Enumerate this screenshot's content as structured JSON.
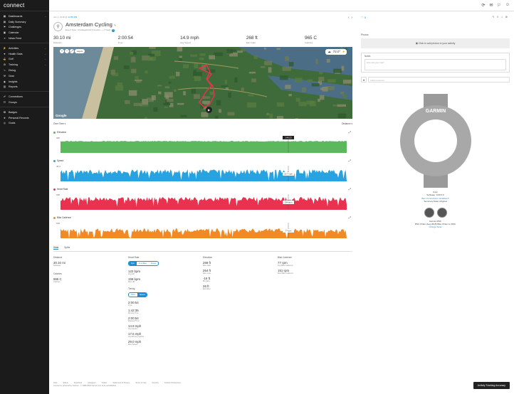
{
  "app": {
    "logo": "connect"
  },
  "sidebar": {
    "items": [
      {
        "label": "Dashboards",
        "icon": "dashboard-icon",
        "chev": true
      },
      {
        "label": "Daily Summary",
        "icon": "daily-summary-icon",
        "chev": false
      },
      {
        "label": "Challenges",
        "icon": "challenges-icon",
        "chev": false
      },
      {
        "label": "Calendar",
        "icon": "calendar-icon",
        "chev": false
      },
      {
        "label": "News Feed",
        "icon": "news-feed-icon",
        "chev": false
      }
    ],
    "items2": [
      {
        "label": "Activities",
        "icon": "activities-icon",
        "chev": true
      },
      {
        "label": "Health Stats",
        "icon": "health-stats-icon",
        "chev": true
      },
      {
        "label": "Golf",
        "icon": "golf-icon",
        "chev": true
      },
      {
        "label": "Training",
        "icon": "training-icon",
        "chev": true
      },
      {
        "label": "Diving",
        "icon": "diving-icon",
        "chev": false
      },
      {
        "label": "Gear",
        "icon": "gear-icon",
        "chev": false
      },
      {
        "label": "Insights",
        "icon": "insights-icon",
        "chev": false
      },
      {
        "label": "Reports",
        "icon": "reports-icon",
        "chev": false
      }
    ],
    "items3": [
      {
        "label": "Connections",
        "icon": "connections-icon",
        "chev": false
      },
      {
        "label": "Groups",
        "icon": "groups-icon",
        "chev": false
      }
    ],
    "items4": [
      {
        "label": "Badges",
        "icon": "badges-icon",
        "chev": false
      },
      {
        "label": "Personal Records",
        "icon": "personal-records-icon",
        "chev": false
      },
      {
        "label": "Goals",
        "icon": "goals-icon",
        "chev": false
      }
    ]
  },
  "activity": {
    "breadcrumb_pre": "Jun 1, 2018 @",
    "breadcrumb_link": "12:55 PM",
    "title": "Amsterdam Cycling",
    "subtitle": "Event Type: Uncategorized ▾   Course: — ▾   Gear:",
    "gear_badge": "1"
  },
  "stats": [
    {
      "value": "30.10 mi",
      "label": "Distance"
    },
    {
      "value": "2:00:54",
      "label": "Time"
    },
    {
      "value": "14.9 mph",
      "label": "Avg Speed"
    },
    {
      "value": "268 ft",
      "label": "Elev Gain"
    },
    {
      "value": "965 C",
      "label": "Calories"
    }
  ],
  "map": {
    "weather": "72.0°",
    "google": "Google",
    "pill": "Layers"
  },
  "charts_header": {
    "left": "Over Time ▾",
    "right": "Distance ▾"
  },
  "graphs": [
    {
      "title": "Elevation",
      "color": "#5cb85c",
      "top_label": "32ft",
      "badge": "1:40:23"
    },
    {
      "title": "Speed",
      "color": "#29a3e0",
      "top_label": "45.0",
      "badge": "15.7 mph"
    },
    {
      "title": "Heart Rate",
      "color": "#e8324f",
      "top_label": "180",
      "badge": "154 bpm"
    },
    {
      "title": "Bike Cadence",
      "color": "#f08a24",
      "top_label": "160",
      "badge": "77 rpm"
    }
  ],
  "tabs": {
    "stats": "Stats",
    "splits": "Splits"
  },
  "cols": {
    "distance": {
      "h": "Distance",
      "items": [
        {
          "v": "30.10 mi",
          "l": "Distance"
        }
      ]
    },
    "calories": {
      "h": "Calories",
      "items": [
        {
          "v": "965 C",
          "l": "Calories"
        }
      ]
    },
    "heart": {
      "h": "Heart Rate",
      "toggle": [
        "bpm",
        "% of Max",
        "Zones"
      ],
      "items": [
        {
          "v": "122 bpm",
          "l": "Avg HR"
        },
        {
          "v": "159 bpm",
          "l": "Max HR"
        }
      ]
    },
    "timing": {
      "h": "Timing",
      "toggle": [
        "Pace",
        "Speed"
      ],
      "items": [
        {
          "v": "2:00:54",
          "l": "Time"
        },
        {
          "v": "1:42:35",
          "l": "Moving Time"
        },
        {
          "v": "2:00:54",
          "l": "Elapsed Time"
        },
        {
          "v": "14.9 mph",
          "l": "Avg Speed"
        },
        {
          "v": "17.6 mph",
          "l": "Avg Moving Speed"
        },
        {
          "v": "29.0 mph",
          "l": "Max Speed"
        }
      ]
    },
    "elev": {
      "h": "Elevation",
      "items": [
        {
          "v": "268 ft",
          "l": "Elev Gain"
        },
        {
          "v": "264 ft",
          "l": "Elev Loss"
        },
        {
          "v": "-16 ft",
          "l": "Min Elev"
        },
        {
          "v": "26 ft",
          "l": "Max Elev"
        }
      ]
    },
    "cadence": {
      "h": "Bike Cadence",
      "items": [
        {
          "v": "77 rpm",
          "l": "Avg Bike Cadence"
        },
        {
          "v": "151 rpm",
          "l": "Max Bike Cadence"
        }
      ]
    }
  },
  "footer": {
    "links": [
      "Help",
      "Status",
      "Facebook",
      "Instagram",
      "Twitter",
      "Statement of Privacy",
      "Terms of Use",
      "Security",
      "Cookie Preferences"
    ],
    "copyright": "Connect is powered by Garmin · © 1996-2018 Garmin Ltd. or its subsidiaries"
  },
  "accuracy_button": "Activity Tracking Accuracy",
  "right": {
    "likes": "0",
    "photos_label": "Photos",
    "photos_cta": "Click to add photos to your activity",
    "notes_label": "Notes",
    "notes_placeholder": "How was your ride?",
    "comment_placeholder": "Add a comment...",
    "watch_brand": "GARMIN",
    "device_lines": [
      "fēnix",
      "Software: 9.00.0.0",
      "Barr Connections: Enabled ▾",
      "Summary Data: Original"
    ],
    "sensor_lines": [
      "Garmin RSC",
      "RSC Chain (Aug 2018) Bike Chain on RSC",
      "Change Gear"
    ]
  }
}
